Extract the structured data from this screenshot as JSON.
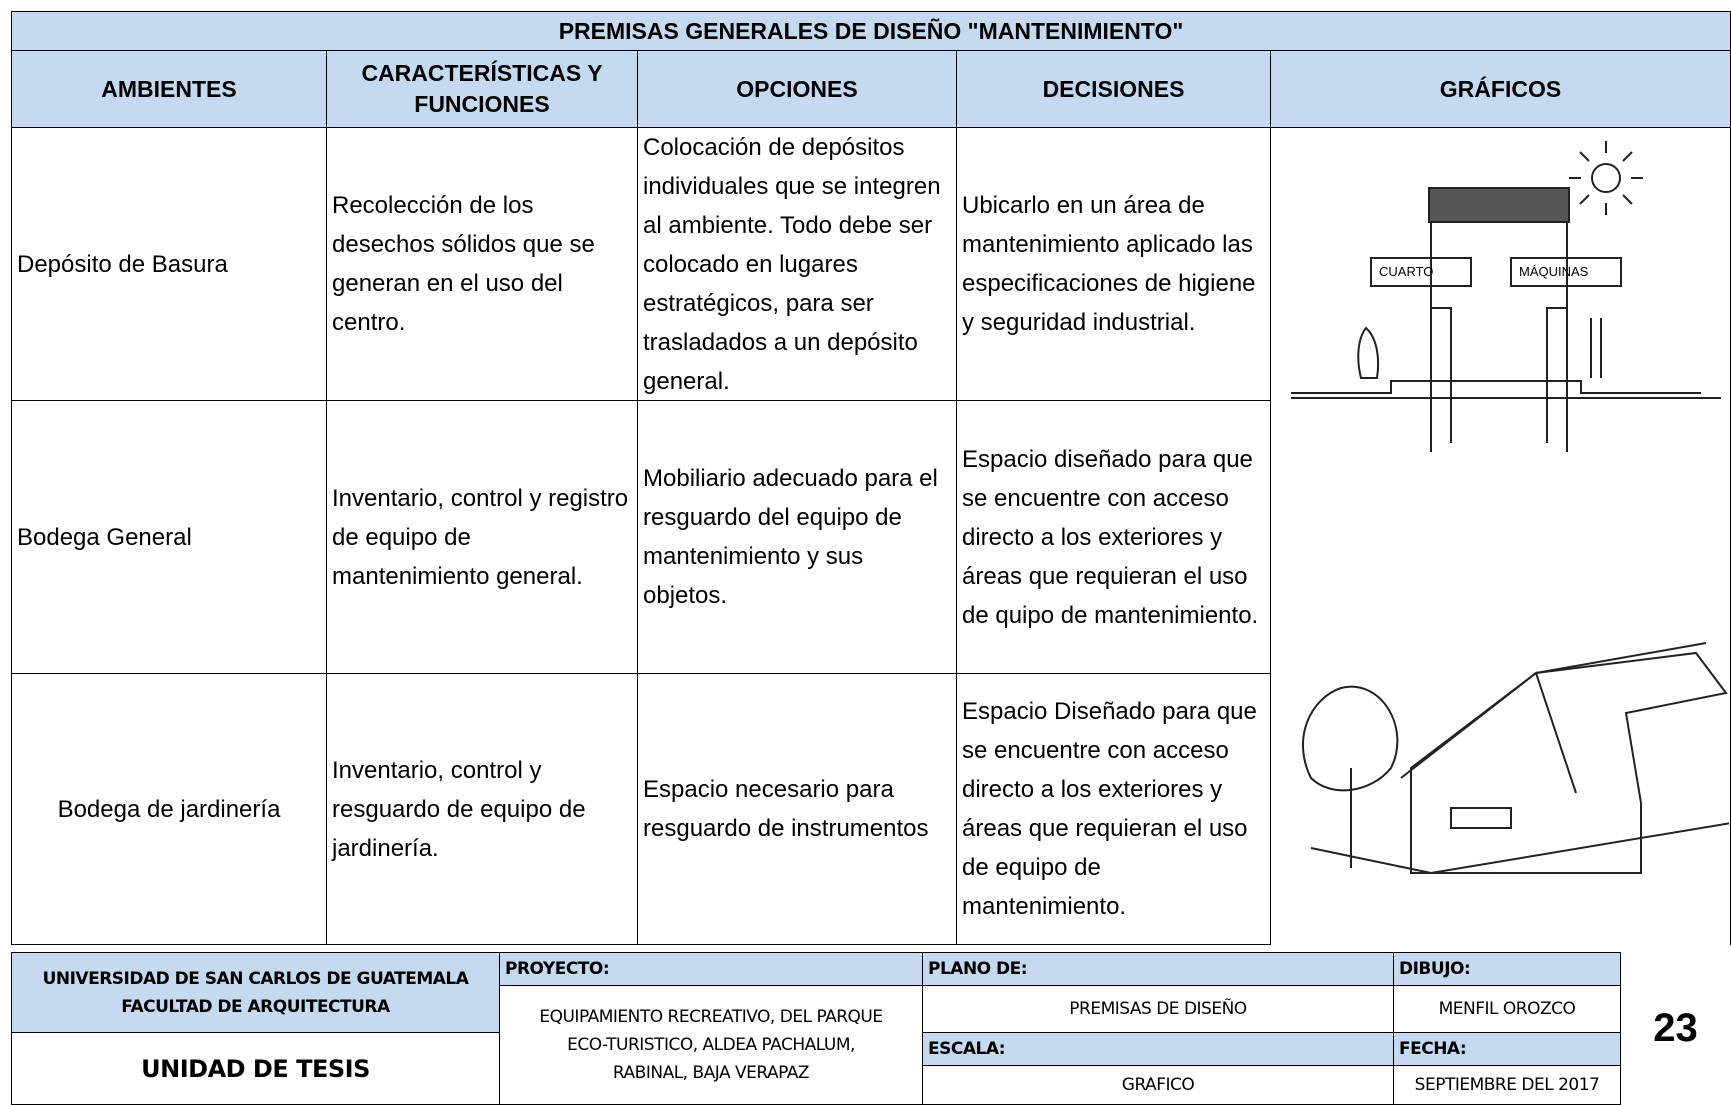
{
  "header": {
    "title": "PREMISAS GENERALES DE DISEÑO \"MANTENIMIENTO\""
  },
  "table": {
    "headers": [
      "AMBIENTES",
      "CARACTERÍSTICAS Y FUNCIONES",
      "OPCIONES",
      "DECISIONES",
      "GRÁFICOS"
    ],
    "rows": [
      [
        "Depósito de Basura",
        "Recolección de los desechos sólidos que se generan en el uso del centro.",
        "Colocación de depósitos individuales que se integren al  ambiente. Todo debe ser colocado en lugares estratégicos, para ser trasladados a un depósito general.",
        "Ubicarlo en un área de mantenimiento aplicado las especificaciones de higiene y seguridad industrial."
      ],
      [
        "Bodega General",
        "Inventario, control y registro de equipo de mantenimiento general.",
        "Mobiliario adecuado para el resguardo del equipo de mantenimiento y sus objetos.",
        "Espacio diseñado para que se encuentre con acceso directo a los exteriores y áreas que requieran el uso de quipo de mantenimiento."
      ],
      [
        "Bodega de jardinería",
        "Inventario, control y resguardo de equipo de jardinería.",
        "Espacio necesario para resguardo de instrumentos",
        "Espacio Diseñado para que se encuentre  con acceso directo a los exteriores y áreas que requieran el uso de equipo de mantenimiento."
      ]
    ],
    "sketch_labels": [
      "CUARTO",
      "MÁQUINAS"
    ]
  },
  "footer": {
    "university": "UNIVERSIDAD DE SAN CARLOS DE GUATEMALA",
    "faculty": "FACULTAD DE ARQUITECTURA",
    "unit": "UNIDAD DE TESIS",
    "project_label": "PROYECTO:",
    "project": "EQUIPAMIENTO RECREATIVO, DEL PARQUE ECO-TURISTICO, ALDEA PACHALUM, RABINAL, BAJA VERAPAZ",
    "plan_label": "PLANO DE:",
    "plan": "PREMISAS DE DISEÑO",
    "scale_label": "ESCALA:",
    "scale": "GRAFICO",
    "drawing_label": "DIBUJO:",
    "drawing": "MENFIL OROZCO",
    "date_label": "FECHA:",
    "date": "SEPTIEMBRE DEL 2017",
    "page": "23"
  }
}
